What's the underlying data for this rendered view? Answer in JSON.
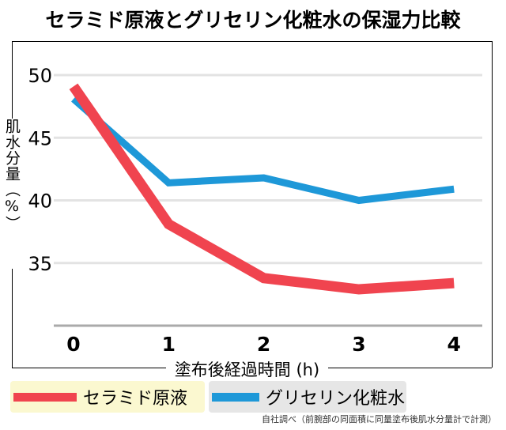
{
  "title": "セラミド原液とグリセリン化粧水の保湿力比較",
  "chart_data": {
    "type": "line",
    "title": "セラミド原液とグリセリン化粧水の保湿力比較",
    "xlabel": "塗布後経過時間 (h)",
    "ylabel": "肌水分量（%）",
    "x": [
      0,
      1,
      2,
      3,
      4
    ],
    "ylim": [
      30,
      50
    ],
    "yticks": [
      35,
      40,
      45,
      50
    ],
    "grid": true,
    "legend": "bottom",
    "series": [
      {
        "name": "セラミド原液",
        "color": "#f0444f",
        "values": [
          49.1,
          38.1,
          33.8,
          32.9,
          33.4
        ]
      },
      {
        "name": "グリセリン化粧水",
        "color": "#1e98d8",
        "values": [
          48.1,
          41.4,
          41.8,
          40.0,
          40.9
        ]
      }
    ]
  },
  "legend_bg": [
    "#fbf8d0",
    "#e6e6e6"
  ],
  "note": "自社調べ（前腕部の同面積に同量塗布後肌水分量計で計測）"
}
